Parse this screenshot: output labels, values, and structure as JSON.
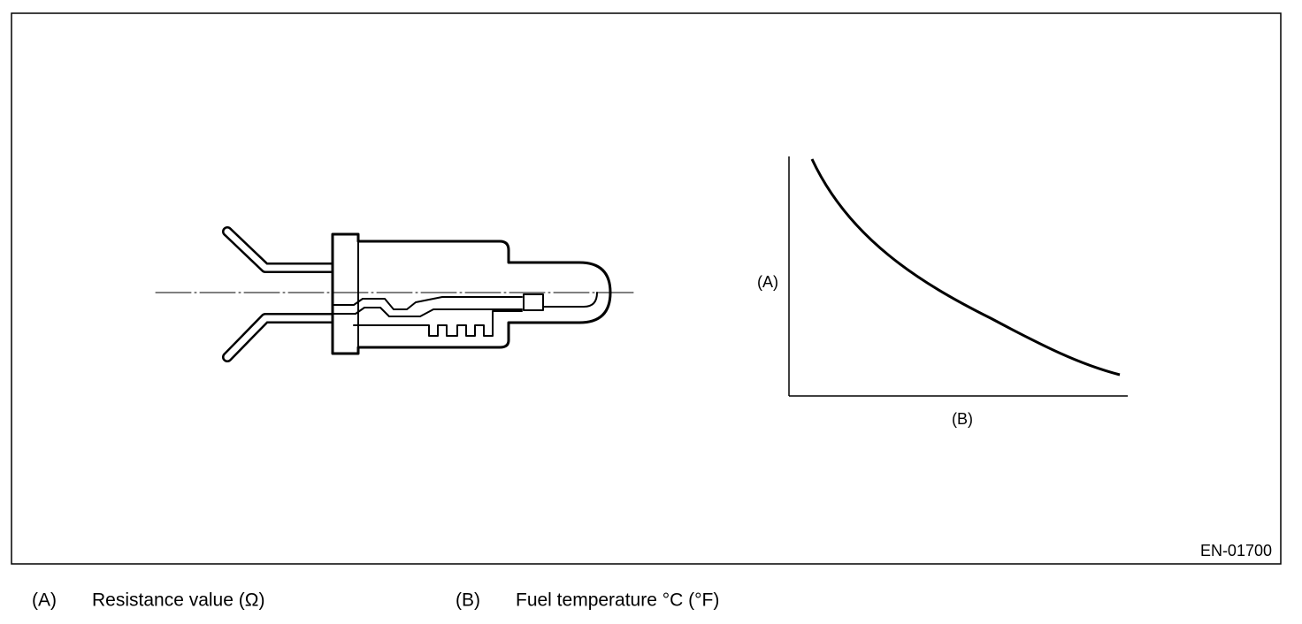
{
  "graph": {
    "y_label": "(A)",
    "x_label": "(B)"
  },
  "figure_id": "EN-01700",
  "legend": [
    {
      "key": "(A)",
      "text": "Resistance value (Ω)"
    },
    {
      "key": "(B)",
      "text": "Fuel temperature °C (°F)"
    }
  ]
}
